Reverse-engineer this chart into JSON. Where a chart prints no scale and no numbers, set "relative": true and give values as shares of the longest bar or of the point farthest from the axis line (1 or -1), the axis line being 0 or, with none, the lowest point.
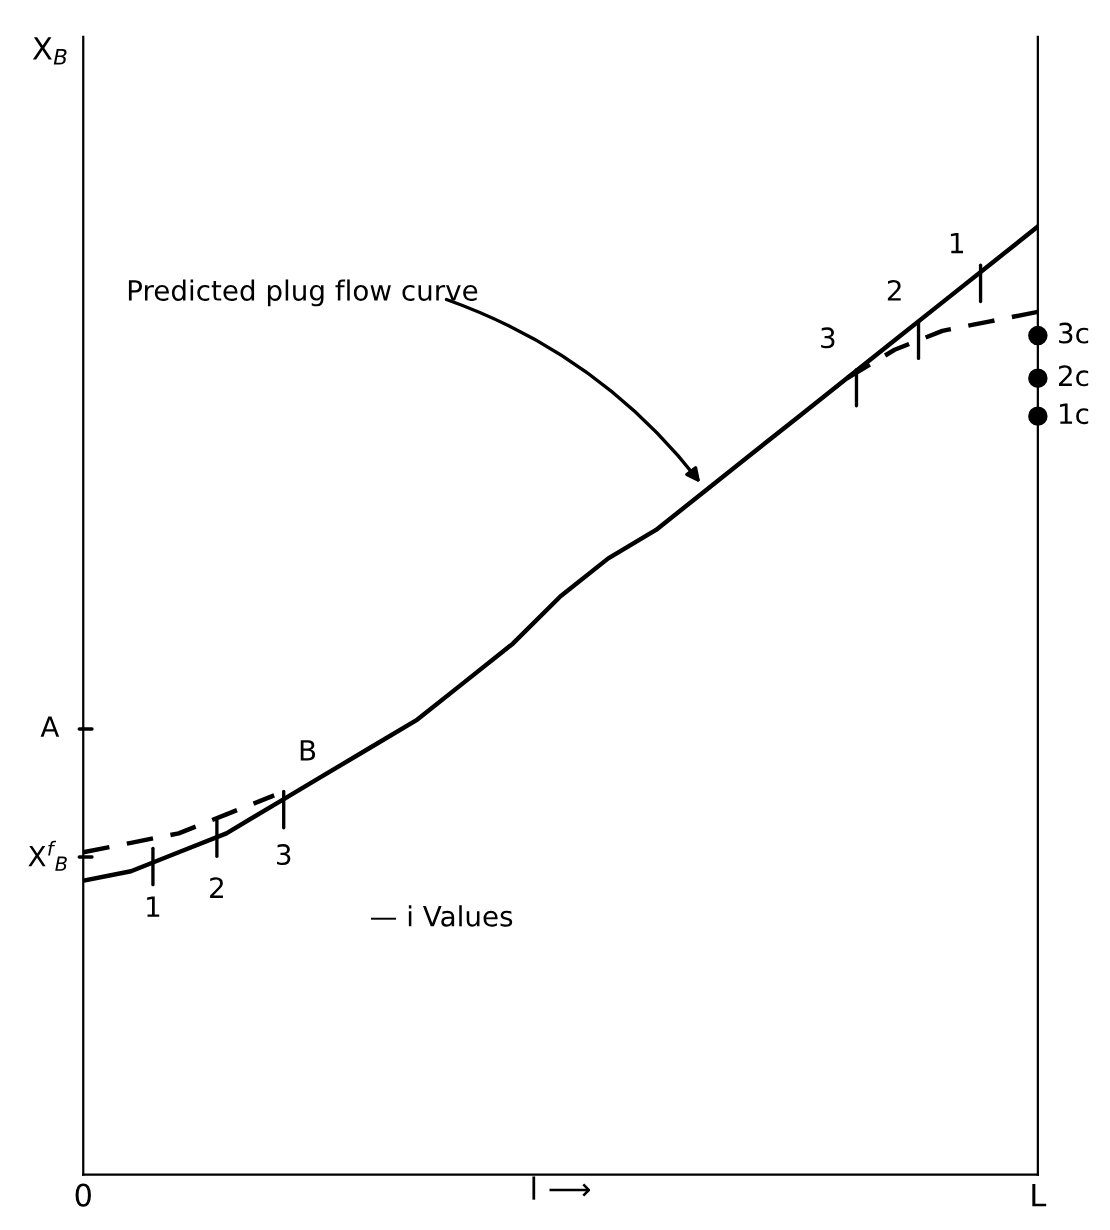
{
  "chart_data": {
    "type": "line",
    "relative": true,
    "xlabel": "l ⟶",
    "categories": [
      "0",
      null,
      null,
      null,
      null,
      null,
      null,
      null,
      null,
      null,
      null,
      null,
      null,
      null,
      null,
      null,
      null,
      null,
      null,
      null,
      "L"
    ],
    "series": [
      {
        "color": "#000000",
        "line_style": "solid",
        "values": [
          0.31,
          0.32,
          0.34,
          0.36,
          0.39,
          0.42,
          0.45,
          0.48,
          0.52,
          0.56,
          0.61,
          0.65,
          0.68,
          0.72,
          0.76,
          0.8,
          0.84,
          0.88,
          0.92,
          0.96,
          1
        ]
      },
      {
        "color": "#000000",
        "line_style": "dashed",
        "values": [
          0.34,
          0.35,
          0.36,
          0.38,
          0.4,
          null,
          null,
          null,
          null,
          null,
          null,
          null,
          null,
          null,
          null,
          null,
          null,
          null,
          null,
          null,
          null
        ]
      },
      {
        "color": "#000000",
        "line_style": "dashed",
        "values": [
          null,
          null,
          null,
          null,
          null,
          null,
          null,
          null,
          null,
          null,
          null,
          null,
          null,
          null,
          null,
          null,
          0.84,
          0.87,
          0.89,
          0.9,
          0.91
        ]
      },
      {
        "type": "scatter",
        "marker": "circle",
        "color": "#000000",
        "values": [
          null,
          null,
          null,
          null,
          null,
          null,
          null,
          null,
          null,
          null,
          null,
          null,
          null,
          null,
          null,
          null,
          null,
          null,
          null,
          null,
          0.885
        ]
      },
      {
        "type": "scatter",
        "marker": "circle",
        "color": "#000000",
        "values": [
          null,
          null,
          null,
          null,
          null,
          null,
          null,
          null,
          null,
          null,
          null,
          null,
          null,
          null,
          null,
          null,
          null,
          null,
          null,
          null,
          0.84
        ]
      },
      {
        "type": "scatter",
        "marker": "circle",
        "color": "#000000",
        "values": [
          null,
          null,
          null,
          null,
          null,
          null,
          null,
          null,
          null,
          null,
          null,
          null,
          null,
          null,
          null,
          null,
          null,
          null,
          null,
          null,
          0.8
        ]
      }
    ],
    "annotations": [
      "Predicted plug flow curve",
      "— i Values",
      "1",
      "2",
      "3",
      "B",
      "3",
      "2",
      "1",
      "3c",
      "2c",
      "1c",
      "A",
      "X$^{f}$$_{B}$",
      "X$_{B}$"
    ],
    "grid": false,
    "legend": false
  }
}
